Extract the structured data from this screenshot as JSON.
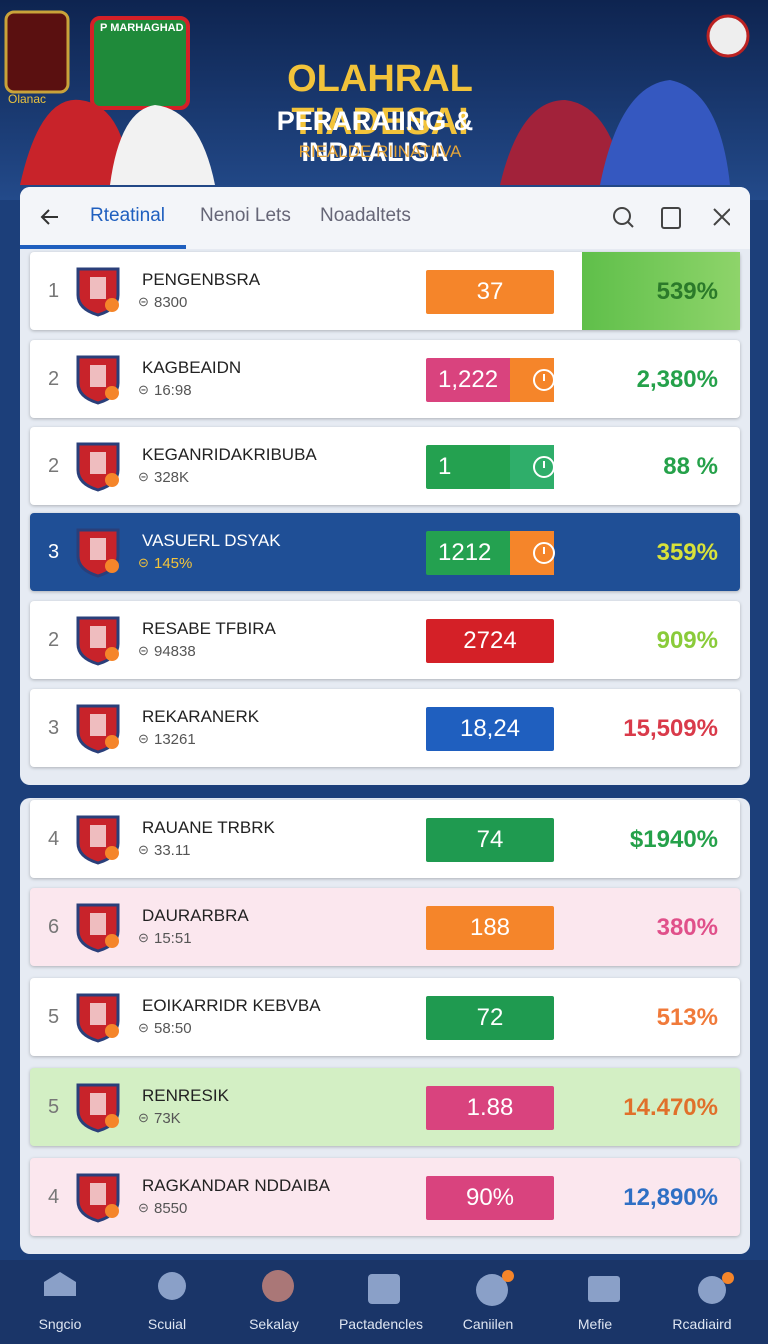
{
  "header": {
    "badge_left": "Olanac",
    "badge_right": "P MARHAGHAD",
    "title": "OLAHRAL TIADESAI",
    "subtitle": "PERARAIING & INDAALISA",
    "tagline": "RIEALDE RIINATIIVA"
  },
  "tabs": [
    "Rteatinal",
    "Nenoi Lets",
    "Noadaltets"
  ],
  "groups": [
    {
      "rows": [
        {
          "rank": "1",
          "name": "PENGENBSRA",
          "stat": "8300",
          "value": "37",
          "value_color": "#f5852a",
          "value_icon": false,
          "percent": "539%",
          "percent_color": "#2f9a3a",
          "row_style": "pct-highlight"
        },
        {
          "rank": "2",
          "name": "KAGBEAIDN",
          "stat": "16:98",
          "value": "1,222",
          "value_color": "#d9437e",
          "value_icon": true,
          "icon_color": "#f5852a",
          "percent": "2,380%",
          "percent_color": "#25a14a",
          "row_style": "plain"
        },
        {
          "rank": "2",
          "name": "KEGANRIDAKRIBUBA",
          "stat": "328K",
          "value": "1",
          "value_color": "#24a150",
          "value_icon": true,
          "icon_color": "#2fae6a",
          "percent": "88 %",
          "percent_color": "#25a14a",
          "row_style": "plain"
        },
        {
          "rank": "3",
          "name": "VASUERL DSYAK",
          "stat": "145%",
          "value": "1212",
          "value_color": "#24a150",
          "value_icon": true,
          "icon_color": "#f5852a",
          "percent": "359%",
          "percent_color": "#d8e23a",
          "row_style": "selected"
        },
        {
          "rank": "2",
          "name": "RESABE TFBIRA",
          "stat": "94838",
          "value": "2724",
          "value_color": "#d42027",
          "value_icon": false,
          "percent": "909%",
          "percent_color": "#8acb3a",
          "row_style": "plain"
        },
        {
          "rank": "3",
          "name": "REKARANERK",
          "stat": "13261",
          "value": "18,24",
          "value_color": "#1f5fbf",
          "value_icon": false,
          "percent": "15,509%",
          "percent_color": "#d93a4a",
          "row_style": "plain"
        }
      ]
    },
    {
      "rows": [
        {
          "rank": "4",
          "name": "RAUANE TRBRK",
          "stat": "33.11",
          "value": "74",
          "value_color": "#1f9a50",
          "value_icon": false,
          "percent": "$1940%",
          "percent_color": "#25a14a",
          "row_style": "plain"
        },
        {
          "rank": "6",
          "name": "DAURARBRA",
          "stat": "15:51",
          "value": "188",
          "value_color": "#f5852a",
          "value_icon": false,
          "percent": "380%",
          "percent_color": "#e0508a",
          "row_style": "pink"
        },
        {
          "rank": "5",
          "name": "EOIKARRIDR KEBVBA",
          "stat": "58:50",
          "value": "72",
          "value_color": "#1f9a50",
          "value_icon": false,
          "percent": "513%",
          "percent_color": "#f07a3a",
          "row_style": "plain"
        },
        {
          "rank": "5",
          "name": "RENRESIK",
          "stat": "73K",
          "value": "1.88",
          "value_color": "#d9437e",
          "value_icon": false,
          "percent": "14.470%",
          "percent_color": "#e0702a",
          "row_style": "green"
        },
        {
          "rank": "4",
          "name": "RAGKANDAR NDDAIBA",
          "stat": "8550",
          "value": "90%",
          "value_color": "#d9437e",
          "value_icon": false,
          "percent": "12,890%",
          "percent_color": "#2f6fc4",
          "row_style": "pink"
        }
      ]
    }
  ],
  "nav": [
    "Sngcio",
    "Scuial",
    "Sekalay",
    "Pactadencles",
    "Caniilen",
    "Mefie",
    "Rcadiaird"
  ]
}
